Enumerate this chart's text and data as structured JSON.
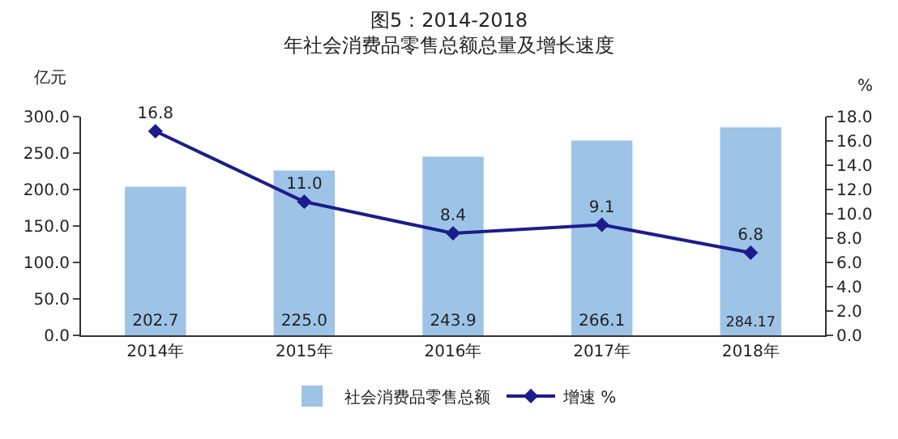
{
  "chart_data": {
    "type": "bar",
    "title": "图5：2014-2018\n年社会消费品零售总额总量及增长速度",
    "ylabel": "亿元",
    "y2label": "%",
    "categories": [
      "2014年",
      "2015年",
      "2016年",
      "2017年",
      "2018年"
    ],
    "series": [
      {
        "name": "社会消费品零售总额",
        "color": "#9dc3e6",
        "values": [
          202.7,
          225.0,
          243.9,
          266.1,
          284.17
        ],
        "value_labels": [
          "202.7",
          "225.0",
          "243.9",
          "266.1",
          "284.17"
        ]
      },
      {
        "name": "增速 %",
        "type": "line",
        "axis": "y2",
        "color": "#1c1c8c",
        "marker": "diamond",
        "values": [
          16.8,
          11.0,
          8.4,
          9.1,
          6.8
        ],
        "value_labels": [
          "16.8",
          "11.0",
          "8.4",
          "9.1",
          "6.8"
        ]
      }
    ],
    "ylim": [
      0,
      300
    ],
    "yticks": [
      {
        "value": 0,
        "label": "0.0"
      },
      {
        "value": 50,
        "label": "50.0"
      },
      {
        "value": 100,
        "label": "100.0"
      },
      {
        "value": 150,
        "label": "150.0"
      },
      {
        "value": 200,
        "label": "200.0"
      },
      {
        "value": 250,
        "label": "250.0"
      },
      {
        "value": 300,
        "label": "300.0"
      }
    ],
    "y2lim": [
      0,
      18
    ],
    "y2ticks": [
      {
        "value": 0,
        "label": "0.0"
      },
      {
        "value": 2,
        "label": "2.0"
      },
      {
        "value": 4,
        "label": "4.0"
      },
      {
        "value": 6,
        "label": "6.0"
      },
      {
        "value": 8,
        "label": "8.0"
      },
      {
        "value": 10,
        "label": "10.0"
      },
      {
        "value": 12,
        "label": "12.0"
      },
      {
        "value": 14,
        "label": "14.0"
      },
      {
        "value": 16,
        "label": "16.0"
      },
      {
        "value": 18,
        "label": "18.0"
      }
    ],
    "legend": "bottom"
  }
}
